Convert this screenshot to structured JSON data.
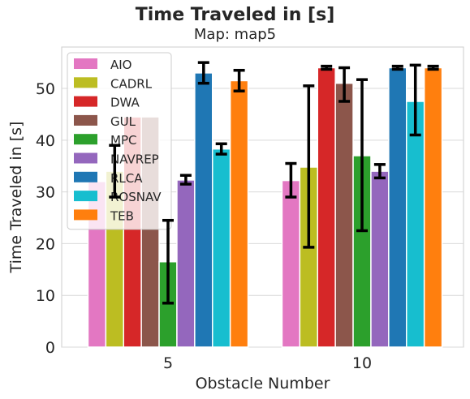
{
  "chart_data": {
    "type": "bar",
    "title": "Time Traveled in [s]",
    "subtitle": "Map: map5",
    "xlabel": "Obstacle Number",
    "ylabel": "Time Traveled in [s]",
    "categories": [
      "5",
      "10"
    ],
    "ylim": [
      0,
      58
    ],
    "yticks": [
      0,
      10,
      20,
      30,
      40,
      50
    ],
    "grid": true,
    "legend_position": "top-left",
    "series": [
      {
        "name": "AIO",
        "color": "#e377c2",
        "values": [
          32.0,
          32.2
        ],
        "err_low": [
          null,
          29.0
        ],
        "err_high": [
          null,
          35.5
        ]
      },
      {
        "name": "CADRL",
        "color": "#bcbd22",
        "values": [
          34.0,
          34.8
        ],
        "err_low": [
          29.0,
          19.3
        ],
        "err_high": [
          39.0,
          50.5
        ]
      },
      {
        "name": "DWA",
        "color": "#d62728",
        "values": [
          44.5,
          54.0
        ],
        "err_low": [
          null,
          53.7
        ],
        "err_high": [
          null,
          54.3
        ]
      },
      {
        "name": "GUL",
        "color": "#8c564b",
        "values": [
          44.5,
          51.0
        ],
        "err_low": [
          null,
          47.5
        ],
        "err_high": [
          null,
          54.0
        ]
      },
      {
        "name": "MPC",
        "color": "#2ca02c",
        "values": [
          16.5,
          37.0
        ],
        "err_low": [
          8.5,
          22.5
        ],
        "err_high": [
          24.5,
          51.7
        ]
      },
      {
        "name": "NAVREP",
        "color": "#9467bd",
        "values": [
          32.3,
          34.0
        ],
        "err_low": [
          31.5,
          32.7
        ],
        "err_high": [
          33.2,
          35.3
        ]
      },
      {
        "name": "RLCA",
        "color": "#1f77b4",
        "values": [
          53.0,
          54.0
        ],
        "err_low": [
          51.0,
          53.7
        ],
        "err_high": [
          55.0,
          54.3
        ]
      },
      {
        "name": "ROSNAV",
        "color": "#17becf",
        "values": [
          38.3,
          47.5
        ],
        "err_low": [
          37.3,
          41.0
        ],
        "err_high": [
          39.3,
          54.5
        ]
      },
      {
        "name": "TEB",
        "color": "#ff7f0e",
        "values": [
          51.5,
          54.0
        ],
        "err_low": [
          49.5,
          53.7
        ],
        "err_high": [
          53.5,
          54.3
        ]
      }
    ]
  }
}
